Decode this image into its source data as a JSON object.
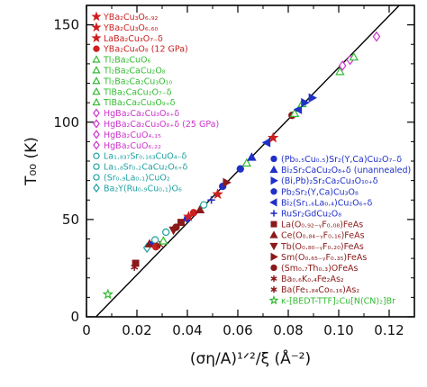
{
  "chart_data": {
    "type": "scatter",
    "xlabel": "(ση/A)¹ᐟ²/ξ (Å⁻²)",
    "ylabel": "T₀₀ (K)",
    "xlim": [
      0,
      0.13
    ],
    "ylim": [
      0,
      160
    ],
    "x_ticks": [
      "0",
      "0.02",
      "0.04",
      "0.06",
      "0.08",
      "0.10",
      "0.12"
    ],
    "y_ticks": [
      "0",
      "50",
      "100",
      "150"
    ],
    "fit_line": {
      "x": [
        0.0,
        0.13
      ],
      "y": [
        -5.0,
        168.0
      ]
    },
    "legend_left": [
      {
        "label": "YBa₂Cu₃O₆.₉₂",
        "marker": "star",
        "color": "#cc2020",
        "filled": true
      },
      {
        "label": "YBa₂Cu₃O₆.₆₀",
        "marker": "star",
        "color": "#cc2020",
        "filled": true
      },
      {
        "label": "LaBa₂Cu₃O₇₋δ",
        "marker": "star",
        "color": "#cc2020",
        "filled": true
      },
      {
        "label": "YBa₂Cu₄O₈ (12 GPa)",
        "marker": "circle",
        "color": "#cc2020",
        "filled": true
      },
      {
        "label": "Tl₂Ba₂CuO₆",
        "marker": "triangle",
        "color": "#33bb33",
        "filled": false
      },
      {
        "label": "Tl₂Ba₂CaCu₂O₈",
        "marker": "triangle",
        "color": "#33bb33",
        "filled": false
      },
      {
        "label": "Tl₂Ba₂Ca₂Cu₃O₁₀",
        "marker": "triangle",
        "color": "#33bb33",
        "filled": false
      },
      {
        "label": "TlBa₂CaCu₂O₇₋δ",
        "marker": "triangle",
        "color": "#33bb33",
        "filled": false
      },
      {
        "label": "TlBa₂Ca₂Cu₃O₉₊δ",
        "marker": "triangle",
        "color": "#33bb33",
        "filled": false
      },
      {
        "label": "HgBa₂Ca₂Cu₃O₈₊δ",
        "marker": "diamond",
        "color": "#cc33cc",
        "filled": false
      },
      {
        "label": "HgBa₂Ca₂Cu₃O₈₊δ (25 GPa)",
        "marker": "diamond",
        "color": "#cc33cc",
        "filled": false
      },
      {
        "label": "HgBa₂CuO₄.₁₅",
        "marker": "diamond",
        "color": "#cc33cc",
        "filled": false
      },
      {
        "label": "HgBa₂CuO₆.₂₂",
        "marker": "diamond",
        "color": "#cc33cc",
        "filled": false
      },
      {
        "label": "La₁.₈₃₇Sr₀.₁₆₃CuO₄₋δ",
        "marker": "circle",
        "color": "#20a0a0",
        "filled": false
      },
      {
        "label": "La₁.₈Sr₀.₂CaCu₂O₆₊δ",
        "marker": "circle",
        "color": "#20a0a0",
        "filled": false
      },
      {
        "label": "(Sr₀.₉La₀.₁)CuO₂",
        "marker": "circle",
        "color": "#20a0a0",
        "filled": false
      },
      {
        "label": "Ba₂Y(Ru₀.₉Cu₀.₁)O₆",
        "marker": "diamond",
        "color": "#20a0a0",
        "filled": false
      }
    ],
    "legend_right": [
      {
        "label": "(Pb₀.₅Cu₀.₅)Sr₂(Y,Ca)Cu₂O₇₋δ",
        "marker": "circle",
        "color": "#2030c8",
        "filled": true
      },
      {
        "label": "Bi₂Sr₂CaCu₂O₈₊δ (unannealed)",
        "marker": "triangle",
        "color": "#2030c8",
        "filled": true
      },
      {
        "label": "(Bi,Pb)₂Sr₂Ca₂Cu₃O₁₀₊δ",
        "marker": "triangle-right",
        "color": "#2030c8",
        "filled": true
      },
      {
        "label": "Pb₂Sr₂(Y,Ca)Cu₃O₈",
        "marker": "circle",
        "color": "#2030c8",
        "filled": true
      },
      {
        "label": "Bi₂(Sr₁.₆La₀.₄)Cu₂O₆₊δ",
        "marker": "triangle-left",
        "color": "#2030c8",
        "filled": true
      },
      {
        "label": "RuSr₂GdCu₂O₈",
        "marker": "plus",
        "color": "#2030c8",
        "filled": true
      },
      {
        "label": "La(O₀.₉₂₋ᵧF₀.₀₈)FeAs",
        "marker": "square",
        "color": "#8b1a1a",
        "filled": true
      },
      {
        "label": "Ce(O₀.₈₄₋ᵧF₀.₁₆)FeAs",
        "marker": "triangle",
        "color": "#8b1a1a",
        "filled": true
      },
      {
        "label": "Tb(O₀.₈₀₋ᵧF₀.₂₀)FeAs",
        "marker": "triangle-down",
        "color": "#8b1a1a",
        "filled": true
      },
      {
        "label": "Sm(O₀.₆₅₋ᵧF₀.₃₅)FeAs",
        "marker": "triangle-right",
        "color": "#8b1a1a",
        "filled": true
      },
      {
        "label": "(Sm₀.₇Th₀.₃)OFeAs",
        "marker": "circle",
        "color": "#8b1a1a",
        "filled": true
      },
      {
        "label": "Ba₀.₆K₀.₄Fe₂As₂",
        "marker": "asterisk",
        "color": "#8b1a1a",
        "filled": true
      },
      {
        "label": "Ba(Fe₁.₈₄Co₀.₁₆)As₂",
        "marker": "asterisk",
        "color": "#8b1a1a",
        "filled": true
      },
      {
        "label": "κ-[BEDT-TTF]₂Cu[N(CN)₂]Br",
        "marker": "star",
        "color": "#33bb33",
        "filled": false
      }
    ],
    "points": [
      {
        "x": 0.0085,
        "y": 11.5,
        "marker": "star",
        "color": "#33bb33",
        "filled": false
      },
      {
        "x": 0.019,
        "y": 25.5,
        "marker": "asterisk",
        "color": "#8b1a1a",
        "filled": true
      },
      {
        "x": 0.0195,
        "y": 27.5,
        "marker": "square",
        "color": "#8b1a1a",
        "filled": true
      },
      {
        "x": 0.024,
        "y": 35.5,
        "marker": "diamond",
        "color": "#20a0a0",
        "filled": false
      },
      {
        "x": 0.025,
        "y": 37.5,
        "marker": "triangle",
        "color": "#8b1a1a",
        "filled": true
      },
      {
        "x": 0.0265,
        "y": 38.0,
        "marker": "triangle-left",
        "color": "#2030c8",
        "filled": true
      },
      {
        "x": 0.0272,
        "y": 39.5,
        "marker": "circle",
        "color": "#20a0a0",
        "filled": false
      },
      {
        "x": 0.0275,
        "y": 36.0,
        "marker": "circle",
        "color": "#cc2020",
        "filled": true
      },
      {
        "x": 0.029,
        "y": 37.0,
        "marker": "asterisk",
        "color": "#8b1a1a",
        "filled": true
      },
      {
        "x": 0.0305,
        "y": 39.0,
        "marker": "triangle",
        "color": "#33bb33",
        "filled": false
      },
      {
        "x": 0.0315,
        "y": 43.5,
        "marker": "circle",
        "color": "#20a0a0",
        "filled": false
      },
      {
        "x": 0.0345,
        "y": 44.5,
        "marker": "triangle-down",
        "color": "#8b1a1a",
        "filled": true
      },
      {
        "x": 0.0355,
        "y": 46.0,
        "marker": "circle",
        "color": "#8b1a1a",
        "filled": true
      },
      {
        "x": 0.0375,
        "y": 48.5,
        "marker": "square",
        "color": "#8b1a1a",
        "filled": true
      },
      {
        "x": 0.04,
        "y": 50.5,
        "marker": "circle",
        "color": "#2030c8",
        "filled": true
      },
      {
        "x": 0.0405,
        "y": 51.5,
        "marker": "star",
        "color": "#cc2020",
        "filled": true
      },
      {
        "x": 0.0425,
        "y": 53.5,
        "marker": "circle",
        "color": "#cc2020",
        "filled": true
      },
      {
        "x": 0.045,
        "y": 55.0,
        "marker": "triangle",
        "color": "#8b1a1a",
        "filled": true
      },
      {
        "x": 0.0465,
        "y": 57.5,
        "marker": "circle",
        "color": "#20a0a0",
        "filled": false
      },
      {
        "x": 0.0495,
        "y": 60.0,
        "marker": "plus",
        "color": "#2030c8",
        "filled": true
      },
      {
        "x": 0.052,
        "y": 63.0,
        "marker": "star",
        "color": "#cc2020",
        "filled": true
      },
      {
        "x": 0.054,
        "y": 67.0,
        "marker": "circle",
        "color": "#2030c8",
        "filled": true
      },
      {
        "x": 0.0555,
        "y": 69.0,
        "marker": "triangle-right",
        "color": "#8b1a1a",
        "filled": true
      },
      {
        "x": 0.061,
        "y": 76.0,
        "marker": "circle",
        "color": "#2030c8",
        "filled": true
      },
      {
        "x": 0.0635,
        "y": 79.0,
        "marker": "triangle",
        "color": "#33bb33",
        "filled": false
      },
      {
        "x": 0.0655,
        "y": 82.0,
        "marker": "triangle",
        "color": "#2030c8",
        "filled": true
      },
      {
        "x": 0.0715,
        "y": 89.5,
        "marker": "triangle-left",
        "color": "#2030c8",
        "filled": true
      },
      {
        "x": 0.074,
        "y": 92.0,
        "marker": "star",
        "color": "#cc2020",
        "filled": true
      },
      {
        "x": 0.0815,
        "y": 103.5,
        "marker": "circle",
        "color": "#8b1a1a",
        "filled": true
      },
      {
        "x": 0.0825,
        "y": 104.5,
        "marker": "triangle",
        "color": "#33bb33",
        "filled": false
      },
      {
        "x": 0.084,
        "y": 106.5,
        "marker": "triangle-left",
        "color": "#2030c8",
        "filled": true
      },
      {
        "x": 0.0855,
        "y": 109.5,
        "marker": "triangle",
        "color": "#33bb33",
        "filled": false
      },
      {
        "x": 0.0865,
        "y": 110.0,
        "marker": "triangle-right",
        "color": "#2030c8",
        "filled": true
      },
      {
        "x": 0.0895,
        "y": 112.5,
        "marker": "triangle-right",
        "color": "#2030c8",
        "filled": true
      },
      {
        "x": 0.1005,
        "y": 126.0,
        "marker": "triangle",
        "color": "#33bb33",
        "filled": false
      },
      {
        "x": 0.1015,
        "y": 129.0,
        "marker": "diamond",
        "color": "#cc33cc",
        "filled": false
      },
      {
        "x": 0.1045,
        "y": 132.0,
        "marker": "diamond",
        "color": "#cc33cc",
        "filled": false
      },
      {
        "x": 0.106,
        "y": 133.5,
        "marker": "triangle",
        "color": "#33bb33",
        "filled": false
      },
      {
        "x": 0.115,
        "y": 144.0,
        "marker": "diamond",
        "color": "#cc33cc",
        "filled": false
      }
    ]
  }
}
